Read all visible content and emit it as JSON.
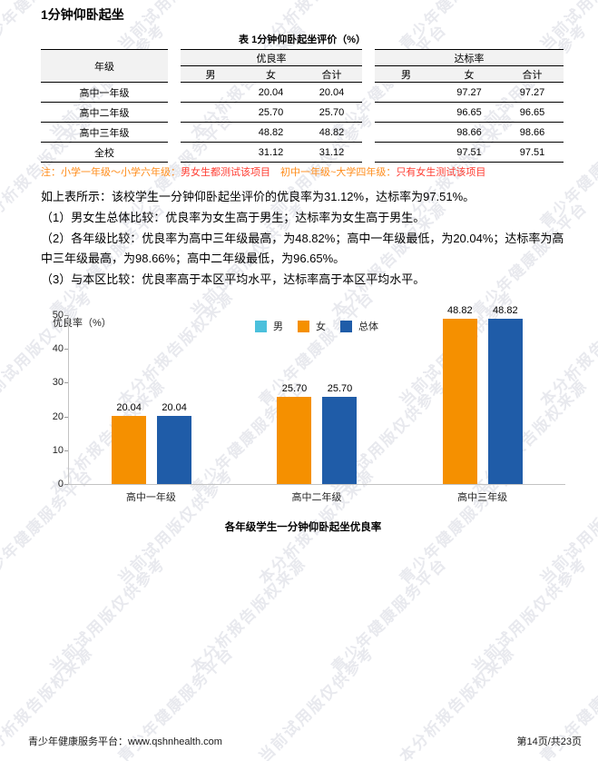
{
  "page": {
    "title": "1分钟仰卧起坐",
    "footer": {
      "left": "青少年健康服务平台：www.qshnhealth.com",
      "right": "第14页/共23页"
    }
  },
  "watermark": {
    "phrases": [
      "青少年健康服务平台",
      "当前试用版仅供参考",
      "本分析报告版权来源"
    ],
    "color": "#e8e9ee"
  },
  "table": {
    "caption": "表 1分钟仰卧起坐评价（%）",
    "row_header": "年级",
    "groups": [
      {
        "label": "优良率",
        "columns": [
          "男",
          "女",
          "合计"
        ]
      },
      {
        "label": "达标率",
        "columns": [
          "男",
          "女",
          "合计"
        ]
      }
    ],
    "rows": [
      {
        "grade": "高中一年级",
        "excellent": [
          "",
          "20.04",
          "20.04"
        ],
        "pass": [
          "",
          "97.27",
          "97.27"
        ]
      },
      {
        "grade": "高中二年级",
        "excellent": [
          "",
          "25.70",
          "25.70"
        ],
        "pass": [
          "",
          "96.65",
          "96.65"
        ]
      },
      {
        "grade": "高中三年级",
        "excellent": [
          "",
          "48.82",
          "48.82"
        ],
        "pass": [
          "",
          "98.66",
          "98.66"
        ]
      },
      {
        "grade": "全校",
        "excellent": [
          "",
          "31.12",
          "31.12"
        ],
        "pass": [
          "",
          "97.51",
          "97.51"
        ]
      }
    ],
    "note_segments": [
      {
        "text": "注：小学一年级～小学六年级：",
        "color": "#ff8c1a"
      },
      {
        "text": "男女生都测试该项目",
        "color": "#ff3b30"
      },
      {
        "text": "　初中一年级~大学四年级：",
        "color": "#ff8c1a"
      },
      {
        "text": "只有女生测试该项目",
        "color": "#ff3b30"
      }
    ]
  },
  "analysis": {
    "paragraphs": [
      "如上表所示：该校学生一分钟仰卧起坐评价的优良率为31.12%，达标率为97.51%。",
      "（1）男女生总体比较：优良率为女生高于男生；达标率为女生高于男生。",
      "（2）各年级比较：优良率为高中三年级最高，为48.82%；高中一年级最低，为20.04%；达标率为高中三年级最高，为98.66%；高中二年级最低，为96.65%。",
      "（3）与本区比较：优良率高于本区平均水平，达标率高于本区平均水平。"
    ]
  },
  "chart_data": {
    "type": "bar",
    "title": "各年级学生一分钟仰卧起坐优良率",
    "ylabel": "优良率（%）",
    "xlabel": "",
    "categories": [
      "高中一年级",
      "高中二年级",
      "高中三年级"
    ],
    "series": [
      {
        "name": "男",
        "color": "#4bc0dc",
        "values": [
          null,
          null,
          null
        ]
      },
      {
        "name": "女",
        "color": "#f59000",
        "values": [
          20.04,
          25.7,
          48.82
        ]
      },
      {
        "name": "总体",
        "color": "#1f5ca8",
        "values": [
          20.04,
          25.7,
          48.82
        ]
      }
    ],
    "ylim": [
      0,
      50
    ],
    "yticks": [
      0,
      10,
      20,
      30,
      40,
      50
    ],
    "grid": false,
    "legend_position": "top-center",
    "axis_color": "#c3c3c3"
  }
}
